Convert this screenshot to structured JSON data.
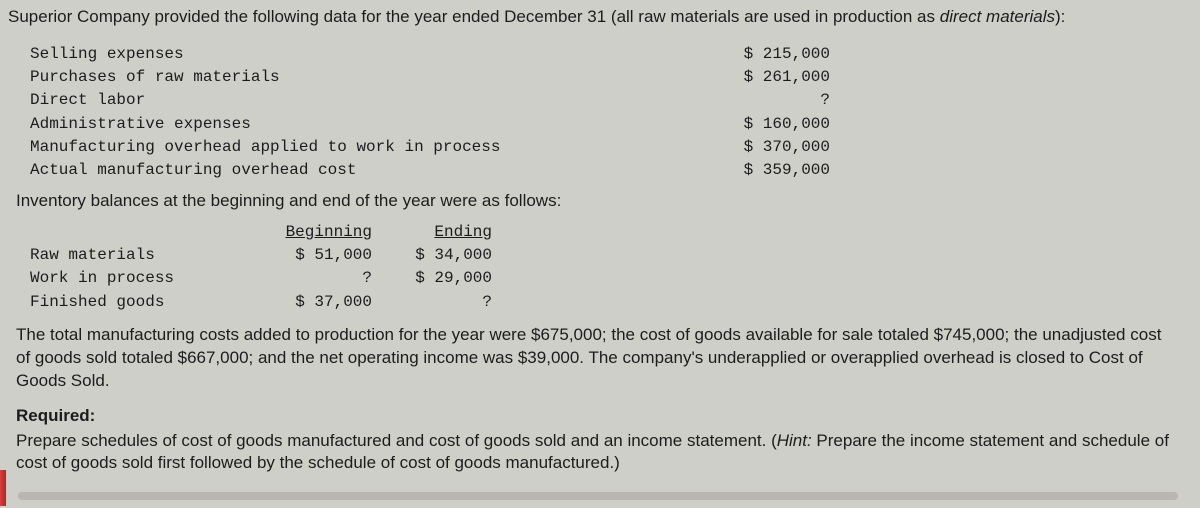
{
  "intro": {
    "pre": "Superior Company provided the following data for the year ended December 31 (all raw materials are used in production as ",
    "ital": "direct materials",
    "post": "):"
  },
  "costs": {
    "labels": [
      "Selling expenses",
      "Purchases of raw materials",
      "Direct labor",
      "Administrative expenses",
      "Manufacturing overhead applied to work in process",
      "Actual manufacturing overhead cost"
    ],
    "values": [
      "$ 215,000",
      "$ 261,000",
      "?",
      "$ 160,000",
      "$ 370,000",
      "$ 359,000"
    ]
  },
  "inv_head": "Inventory balances at the beginning and end of the year were as follows:",
  "inv": {
    "col_beg": "Beginning",
    "col_end": "Ending",
    "rows": [
      {
        "label": "Raw materials",
        "beg": "$ 51,000",
        "end": "$ 34,000"
      },
      {
        "label": "Work in process",
        "beg": "?",
        "end": "$ 29,000"
      },
      {
        "label": "Finished goods",
        "beg": "$ 37,000",
        "end": "?"
      }
    ]
  },
  "narrative": "The total manufacturing costs added to production for the year were $675,000; the cost of goods available for sale totaled $745,000; the unadjusted cost of goods sold totaled $667,000; and the net operating income was $39,000. The company's underapplied or overapplied overhead is closed to Cost of Goods Sold.",
  "required": {
    "label": "Required:",
    "text_pre": "Prepare schedules of cost of goods manufactured and cost of goods sold and an income statement. (",
    "hint": "Hint:",
    "text_post": " Prepare the income statement and schedule of cost of goods sold first followed by the schedule of cost of goods manufactured.)"
  }
}
